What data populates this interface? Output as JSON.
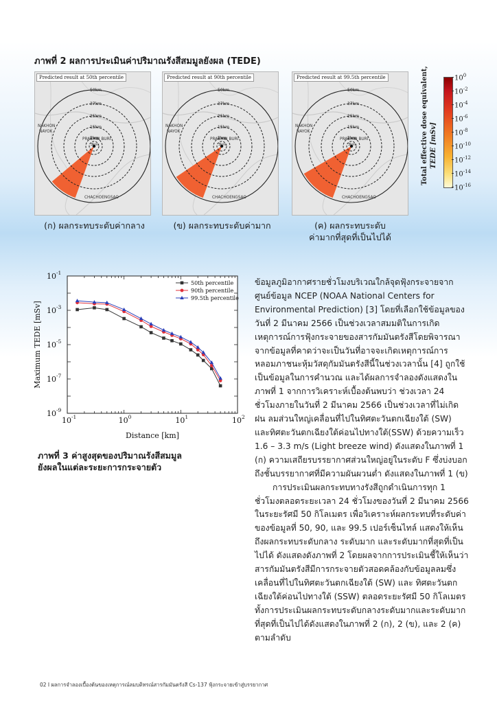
{
  "figure2": {
    "title": "ภาพที่ 2 ผลการประเมินค่าปริมาณรังสีสมมูลยังผล (TEDE)",
    "panels": [
      {
        "label": "Predicted result at 50th percentile",
        "caption_lines": [
          "(ก) ผลกระทบระดับค่ากลาง"
        ]
      },
      {
        "label": "Predicted result at 90th percentile",
        "caption_lines": [
          "(ข) ผลกระทบระดับค่ามาก"
        ]
      },
      {
        "label": "Predicted result at 99.5th percentile",
        "caption_lines": [
          "(ค) ผลกระทบระดับ",
          "ค่ามากที่สุดที่เป็นไปได้"
        ]
      }
    ],
    "ring_labels": [
      "50km",
      "37km",
      "25km",
      "15km",
      "5km",
      "3km"
    ],
    "place_labels": [
      "NAKHON",
      "NAYOK",
      "PRACHIN BURI",
      "CHACHOENGSAO"
    ],
    "plume_color": "#f05a28",
    "colorbar": {
      "title_line1": "Total effective dose equivalent,",
      "title_line2": "TEDE [mSv]",
      "ticks": [
        "10",
        "10",
        "10",
        "10",
        "10",
        "10",
        "10",
        "10",
        "10"
      ],
      "tick_exponents": [
        "0",
        "-2",
        "-4",
        "-6",
        "-8",
        "-10",
        "-12",
        "-14",
        "-16"
      ]
    }
  },
  "chart_data": {
    "type": "line",
    "xlabel": "Distance [km]",
    "ylabel": "Maximum TEDE [mSv]",
    "xscale": "log",
    "yscale": "log",
    "xlim": [
      0.1,
      100
    ],
    "ylim": [
      1e-09,
      0.1
    ],
    "x_tick_labels": [
      "10",
      "10",
      "10",
      "10"
    ],
    "x_tick_exponents": [
      "-1",
      "0",
      "1",
      "2"
    ],
    "y_tick_labels": [
      "10",
      "10",
      "10",
      "10",
      "10"
    ],
    "y_tick_exponents": [
      "-1",
      "-3",
      "-5",
      "-7",
      "-9"
    ],
    "legend_position": "top-right",
    "x": [
      0.15,
      0.3,
      0.5,
      1,
      2,
      3,
      5,
      7,
      10,
      15,
      20,
      25,
      35,
      50
    ],
    "series": [
      {
        "name": "50th percentile",
        "marker": "square",
        "color": "#333333",
        "values": [
          0.0011,
          0.0014,
          0.0011,
          0.00033,
          0.00011,
          5e-05,
          2.4e-05,
          1.7e-05,
          1.1e-05,
          5e-06,
          2.5e-06,
          1.2e-06,
          4e-07,
          4e-08
        ]
      },
      {
        "name": "90th percentile",
        "marker": "circle",
        "color": "#e0303a",
        "values": [
          0.0028,
          0.0024,
          0.0023,
          0.00085,
          0.00026,
          0.000115,
          5.5e-05,
          3.5e-05,
          2.2e-05,
          1.1e-05,
          5e-06,
          2.6e-06,
          6e-07,
          8e-08
        ]
      },
      {
        "name": "99.5th percentile",
        "marker": "triangle",
        "color": "#2a3fb8",
        "values": [
          0.0036,
          0.003,
          0.0028,
          0.0011,
          0.00033,
          0.00016,
          7e-05,
          4.4e-05,
          2.8e-05,
          1.4e-05,
          7e-06,
          3.5e-06,
          9e-07,
          1.1e-07
        ]
      }
    ]
  },
  "figure3": {
    "caption_line1": "ภาพที่ 3 ค่าสูงสุดของปริมาณรังสีสมมูล",
    "caption_line2": "ยังผลในแต่ละระยะการกระจายตัว"
  },
  "body": {
    "paragraph1": "ข้อมูลภูมิอากาศรายชั่วโมงบริเวณใกล้จุดฟุ้งกระจายจากศูนย์ข้อมูล NCEP (NOAA National Centers for Environmental Prediction) [3] โดยที่เลือกใช้ข้อมูลของ วันที่ 2 มีนาคม 2566 เป็นช่วงเวลาสมมติในการเกิดเหตุการณ์การฟุ้งกระจายของสารกัมมันตรังสีโดยพิจารณาจากข้อมูลที่คาดว่าจะเป็นวันที่อาจจะเกิดเหตุการณ์การหลอมภาชนะหุ้มวัสดุกัมมันตรังสีนี้ในช่วงเวลานั้น [4] ถูกใช้เป็นข้อมูลในการคำนวณ และได้ผลการจำลองดังแสดงใน ภาพที่ 1 จากการวิเคราะห์เบื้องต้นพบว่า ช่วงเวลา 24 ชั่วโมงภายในวันที่ 2 มีนาคม 2566 เป็นช่วงเวลาที่ไม่เกิดฝน ลมส่วนใหญ่เคลื่อนที่ไปในทิศตะวันตกเฉียงใต้ (SW) และทิศตะวันตกเฉียงใต้ค่อนไปทางใต้(SSW) ด้วยความเร็ว 1.6 – 3.3 m/s (Light breeze wind) ดังแสดงในภาพที่ 1 (ก) ความเสถียรบรรยากาศส่วนใหญ่อยู่ในระดับ F ซึ่งบ่งบอกถึงชั้นบรรยากาศที่มีความผันผวนต่ำ ดังแสดงในภาพที่ 1 (ข)",
    "paragraph2": "การประเมินผลกระทบทางรังสีถูกดำเนินการทุก 1 ชั่วโมงตลอดระยะเวลา 24 ชั่วโมงของวันที่ 2 มีนาคม 2566 ในระยะรัศมี 50 กิโลเมตร เพื่อวิเคราะห์ผลกระทบที่ระดับค่าของข้อมูลที่ 50, 90, และ 99.5 เปอร์เซ็นไทล์ แสดงให้เห็นถึงผลกระทบระดับกลาง ระดับมาก และระดับมากที่สุดที่เป็นไปได้ ดังแสดงดังภาพที่ 2 โดยผลจากการประเมินชี้ให้เห็นว่าสารกัมมันตรังสีมีการกระจายตัวสอดคล้องกับข้อมูลลมซึ่งเคลื่อนที่ไปในทิศตะวันตกเฉียงใต้ (SW) และ ทิศตะวันตกเฉียงใต้ค่อนไปทางใต้ (SSW) ตลอดระยะรัศมี 50 กิโลเมตร ทั้งการประเมินผลกระทบระดับกลางระดับมากและระดับมากที่สุดที่เป็นไปได้ดังแสดงในภาพที่ 2 (ก), 2 (ข), และ 2 (ค) ตามลำดับ"
  },
  "footer": {
    "text": "02 I ผลการจำลองเบื้องต้นของเหตุการณ์ลมบดิทรณ์สารกัมมันตรังสี Cs-137 ฟุ้งกระจายเข้าสู่บรรยากาศ"
  }
}
